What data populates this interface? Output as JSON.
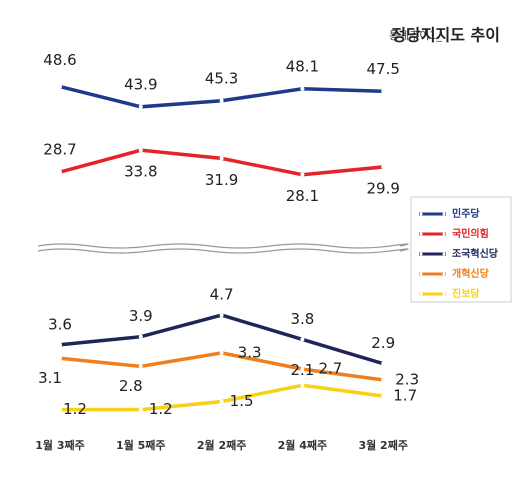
{
  "chart_data": {
    "type": "line",
    "title_prefix": "통계추이1_",
    "title": "정당지지도 추이",
    "categories": [
      "1월 3째주",
      "1월 5째주",
      "2월 2째주",
      "2월 4째주",
      "3월 2째주"
    ],
    "ylim": [
      25,
      52
    ],
    "y2lim": [
      0,
      5
    ],
    "series": [
      {
        "name": "민주당",
        "color": "#1f3a8a",
        "values": [
          48.6,
          43.9,
          45.3,
          48.1,
          47.5
        ]
      },
      {
        "name": "국민의힘",
        "color": "#e5232b",
        "values": [
          28.7,
          33.8,
          31.9,
          28.1,
          29.9
        ]
      },
      {
        "name": "조국혁신당",
        "color": "#1f2557",
        "axis": "y2",
        "values": [
          3.6,
          3.9,
          4.7,
          3.8,
          2.9
        ]
      },
      {
        "name": "개혁신당",
        "color": "#f07e1c",
        "axis": "y2",
        "values": [
          3.1,
          2.8,
          3.3,
          2.7,
          2.3
        ]
      },
      {
        "name": "진보당",
        "color": "#f8d116",
        "axis": "y2",
        "values": [
          1.2,
          1.2,
          1.5,
          2.1,
          1.7
        ]
      }
    ]
  }
}
